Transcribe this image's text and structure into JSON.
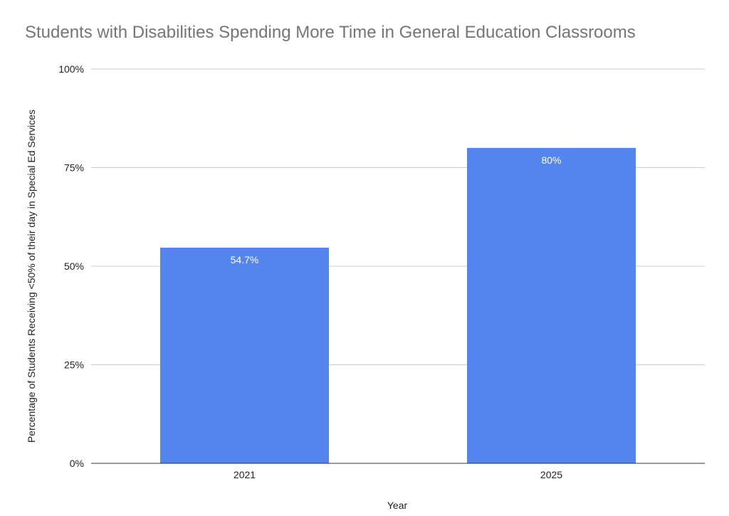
{
  "chart_data": {
    "type": "bar",
    "title": "Students with Disabilities Spending More Time in General Education Classrooms",
    "xlabel": "Year",
    "ylabel": "Percentage of Students Receiving <50% of their day in Special Ed Services",
    "categories": [
      "2021",
      "2025"
    ],
    "values": [
      54.7,
      80
    ],
    "data_labels": [
      "54.7%",
      "80%"
    ],
    "ylim": [
      0,
      100
    ],
    "yticks": [
      0,
      25,
      50,
      75,
      100
    ],
    "ytick_labels": [
      "0%",
      "25%",
      "50%",
      "75%",
      "100%"
    ],
    "grid": true,
    "legend": "none",
    "bar_color": "#5484ed",
    "title_color": "#757575"
  }
}
